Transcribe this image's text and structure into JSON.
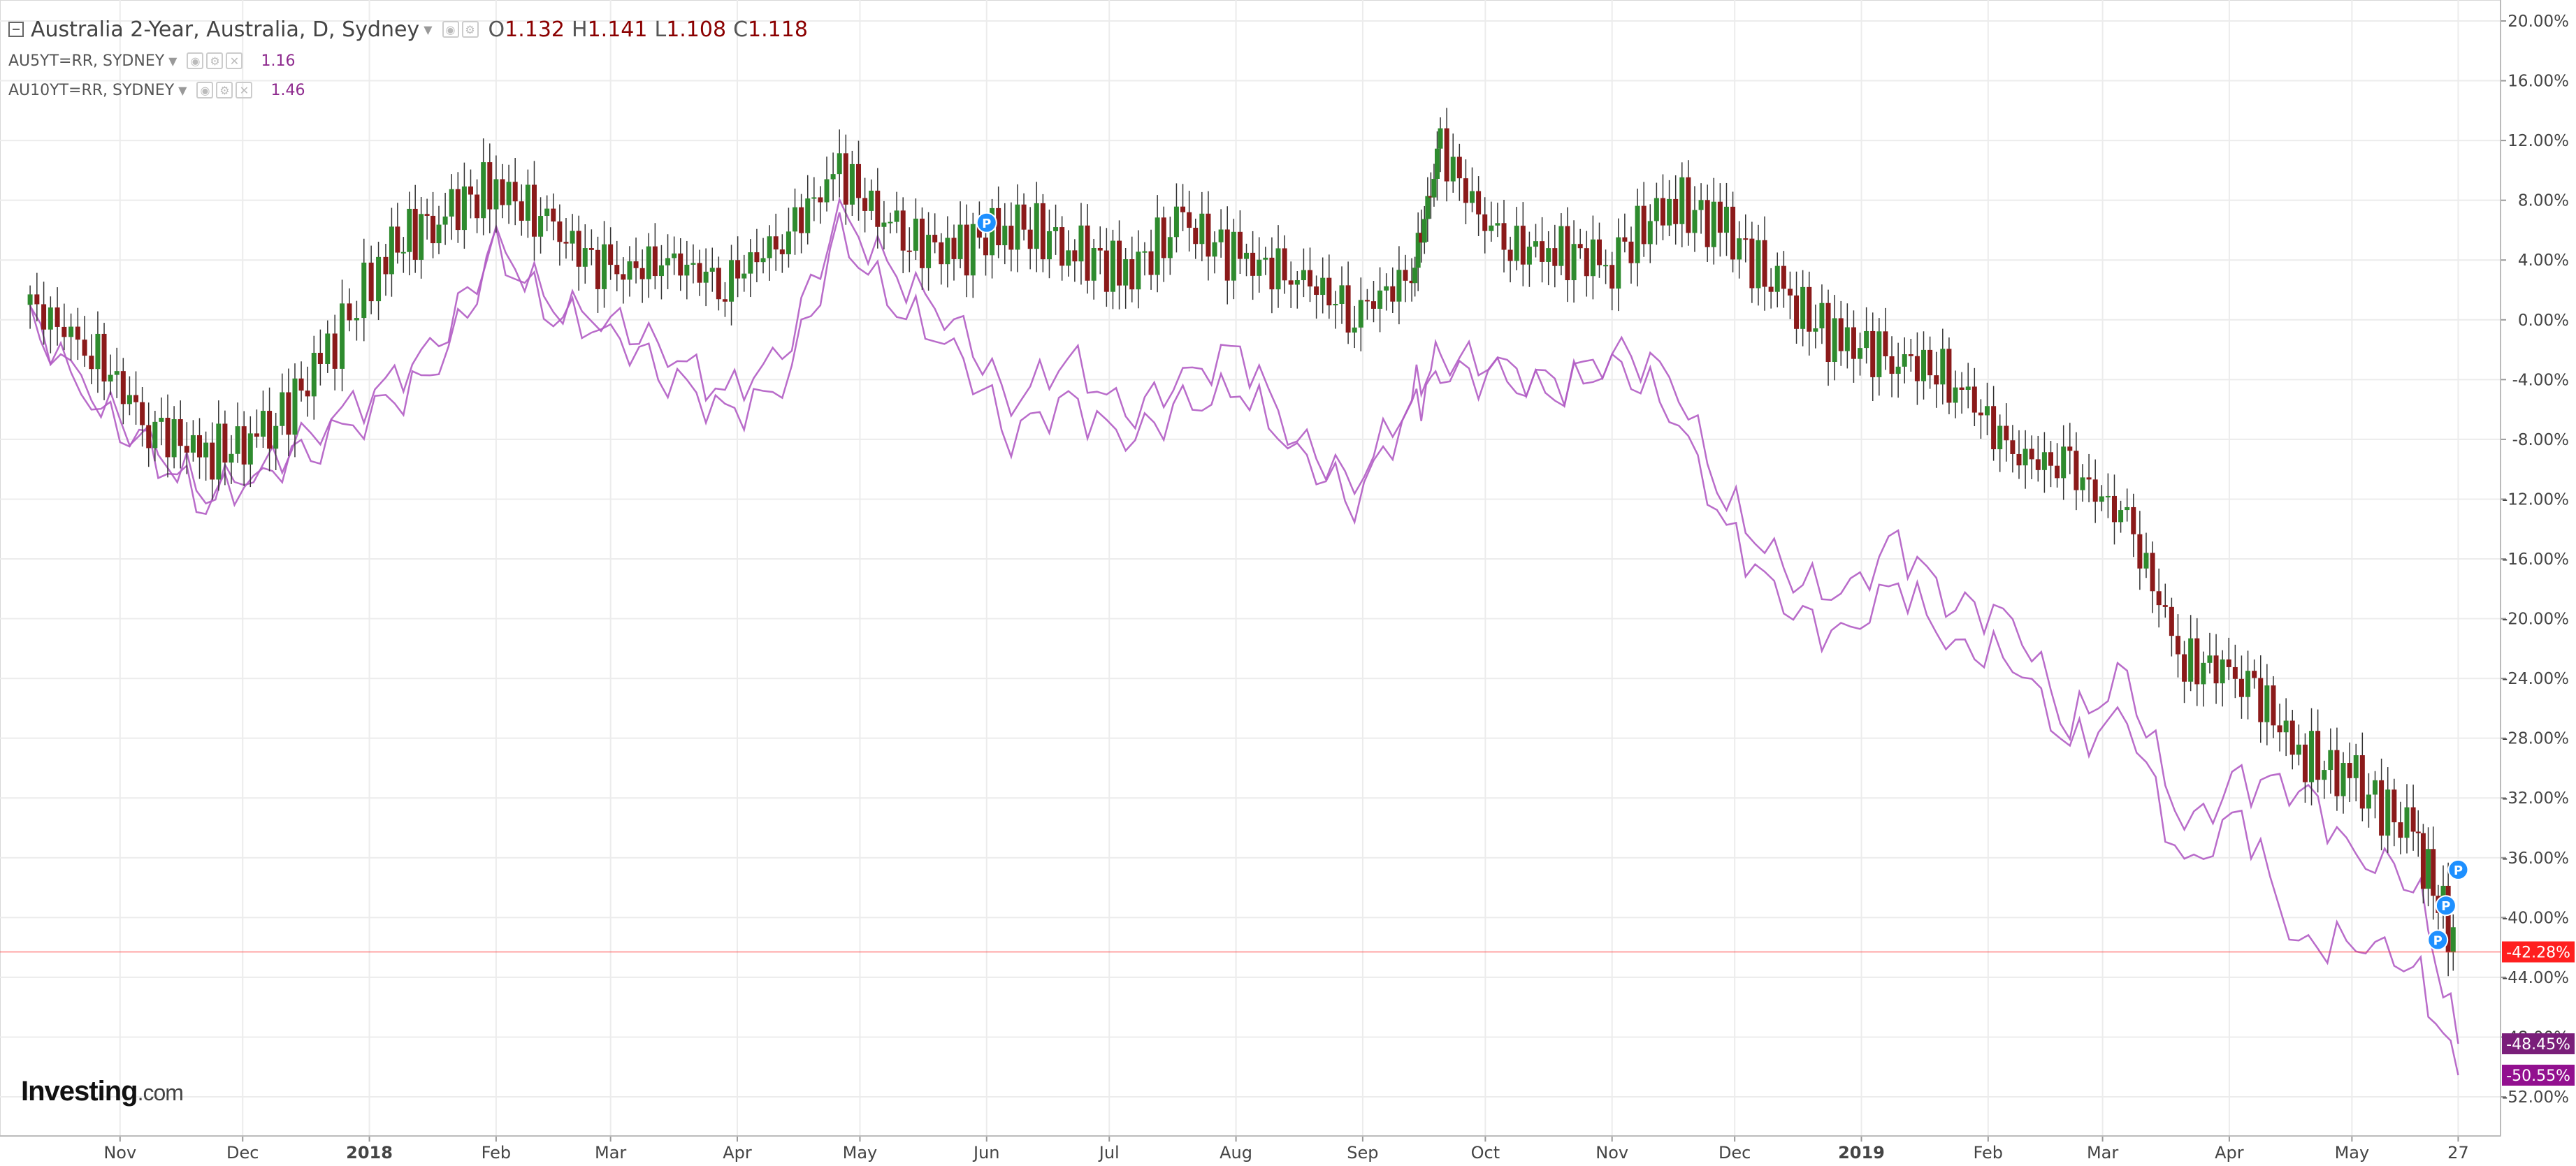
{
  "legend": {
    "main_title": "Australia 2-Year, Australia, D, Sydney",
    "ohlc": [
      {
        "k": "O",
        "v": "1.132"
      },
      {
        "k": "H",
        "v": "1.141"
      },
      {
        "k": "L",
        "v": "1.108"
      },
      {
        "k": "C",
        "v": "1.118"
      }
    ],
    "sub": [
      {
        "name": "AU5YT=RR, SYDNEY",
        "value": "1.16"
      },
      {
        "name": "AU10YT=RR, SYDNEY",
        "value": "1.46"
      }
    ]
  },
  "logo": {
    "brand": "Investing",
    "domain": ".com"
  },
  "colors": {
    "up": "#2e8b2e",
    "down": "#8b1a1a",
    "compare": "#b15cc4",
    "current_line": "#ff3b3b",
    "grid": "#ececec",
    "marker": "#1e90ff",
    "badge_red": "#ff1f1f",
    "badge_purple1": "#7a1f7a",
    "badge_purple2": "#92108f"
  },
  "chart_data": {
    "type": "line",
    "title": "Australia 2-Year, Australia, D, Sydney",
    "x_tick_labels": [
      "Nov",
      "Dec",
      "2018",
      "Feb",
      "Mar",
      "Apr",
      "May",
      "Jun",
      "Jul",
      "Aug",
      "Sep",
      "Oct",
      "Nov",
      "Dec",
      "2019",
      "Feb",
      "Mar",
      "Apr",
      "May",
      "27"
    ],
    "y_tick_labels": [
      "20.00%",
      "16.00%",
      "12.00%",
      "8.00%",
      "4.00%",
      "0.00%",
      "-4.00%",
      "-8.00%",
      "-12.00%",
      "-16.00%",
      "-20.00%",
      "-24.00%",
      "-28.00%",
      "-32.00%",
      "-36.00%",
      "-40.00%",
      "-44.00%",
      "-48.00%",
      "-52.00%"
    ],
    "ylim": [
      -54,
      22
    ],
    "grid": true,
    "x": [
      "2017-10-10",
      "2017-10-25",
      "2017-11-08",
      "2017-11-22",
      "2017-12-06",
      "2017-12-20",
      "2018-01-05",
      "2018-01-18",
      "2018-02-01",
      "2018-02-15",
      "2018-03-01",
      "2018-03-15",
      "2018-03-29",
      "2018-04-12",
      "2018-04-26",
      "2018-05-10",
      "2018-05-24",
      "2018-06-07",
      "2018-06-21",
      "2018-07-05",
      "2018-07-19",
      "2018-08-02",
      "2018-08-16",
      "2018-08-30",
      "2018-09-13",
      "2018-09-20",
      "2018-10-04",
      "2018-10-18",
      "2018-11-01",
      "2018-11-15",
      "2018-11-29",
      "2018-12-13",
      "2018-12-27",
      "2019-01-10",
      "2019-01-24",
      "2019-02-07",
      "2019-02-21",
      "2019-03-07",
      "2019-03-21",
      "2019-04-04",
      "2019-04-18",
      "2019-05-02",
      "2019-05-16",
      "2019-05-27"
    ],
    "series": [
      {
        "name": "Australia 2-Year",
        "values": [
          1.0,
          -2.0,
          -7.0,
          -9.0,
          -8.0,
          -3.0,
          4.5,
          7.0,
          9.0,
          6.0,
          3.0,
          4.0,
          2.5,
          5.5,
          10.0,
          5.5,
          4.5,
          6.5,
          5.0,
          3.0,
          6.5,
          4.0,
          3.0,
          0.5,
          3.0,
          11.5,
          5.0,
          4.5,
          4.0,
          8.0,
          6.0,
          1.5,
          -1.5,
          -2.5,
          -4.0,
          -9.0,
          -10.0,
          -13.5,
          -23.0,
          -23.5,
          -29.0,
          -31.0,
          -34.5,
          -42.3
        ]
      },
      {
        "name": "AU5YT=RR, SYDNEY",
        "values": [
          0.0,
          -5.0,
          -8.5,
          -11.5,
          -10.0,
          -7.0,
          -4.5,
          -1.5,
          5.0,
          1.0,
          0.0,
          -2.0,
          -5.0,
          -2.5,
          7.0,
          3.0,
          0.0,
          -5.5,
          -2.5,
          -6.5,
          -4.0,
          -2.0,
          -8.0,
          -11.0,
          -5.0,
          -2.5,
          -3.0,
          -4.5,
          -2.0,
          -3.5,
          -12.0,
          -17.0,
          -18.5,
          -15.0,
          -19.0,
          -20.0,
          -27.0,
          -24.0,
          -34.0,
          -31.0,
          -31.0,
          -36.0,
          -37.0,
          -48.45
        ]
      },
      {
        "name": "AU10YT=RR, SYDNEY",
        "values": [
          0.0,
          -5.5,
          -9.0,
          -12.0,
          -10.5,
          -8.0,
          -6.0,
          -3.0,
          4.5,
          0.5,
          -1.0,
          -3.5,
          -6.5,
          -4.5,
          5.5,
          1.0,
          -2.0,
          -7.5,
          -5.5,
          -8.0,
          -6.0,
          -4.5,
          -9.0,
          -12.0,
          -6.0,
          -3.5,
          -4.0,
          -5.0,
          -3.0,
          -5.5,
          -14.0,
          -19.0,
          -21.5,
          -17.5,
          -22.0,
          -22.5,
          -28.5,
          -26.5,
          -37.0,
          -33.0,
          -42.0,
          -41.5,
          -43.0,
          -50.55
        ]
      }
    ],
    "current_values": {
      "main": "-42.28%",
      "au5y": "-48.45%",
      "au10y": "-50.55%"
    },
    "markers": [
      {
        "x": "2018-06-01",
        "y": 6.5,
        "label": "P"
      },
      {
        "x": "2019-05-22",
        "y": -41.5,
        "label": "P"
      },
      {
        "x": "2019-05-24",
        "y": -39.2,
        "label": "P"
      },
      {
        "x": "2019-05-27",
        "y": -36.8,
        "label": "P"
      }
    ]
  }
}
